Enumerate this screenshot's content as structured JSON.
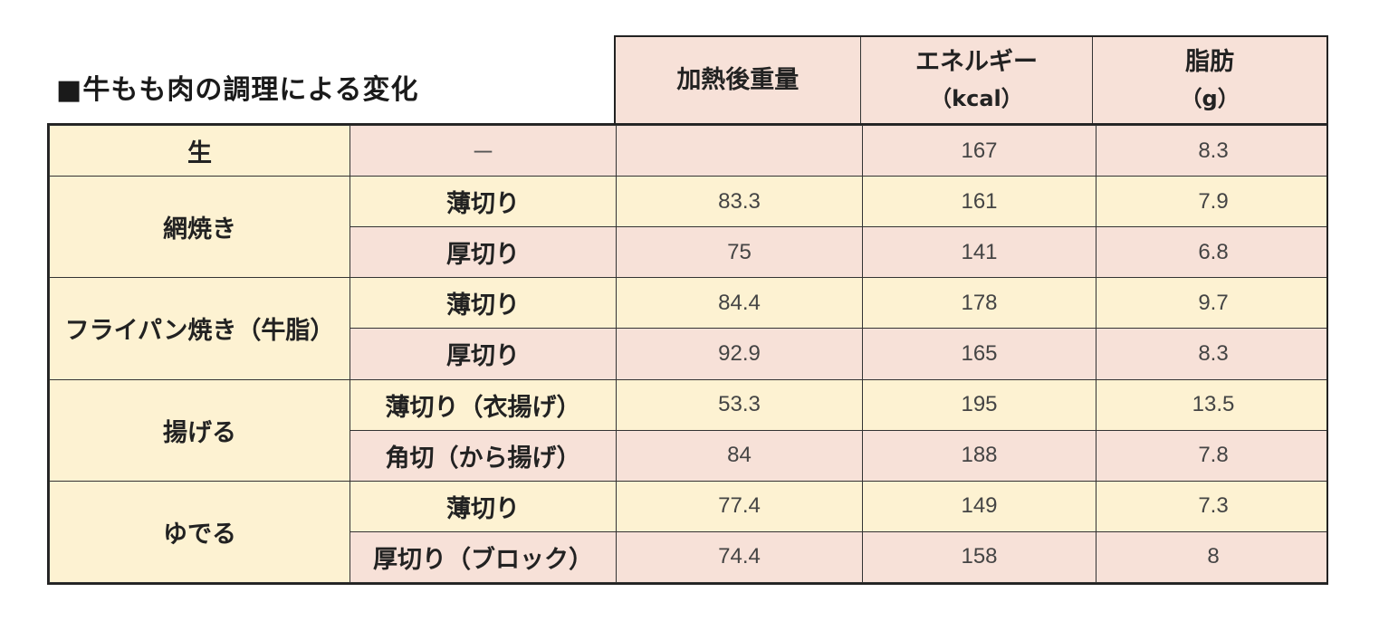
{
  "title": "■牛もも肉の調理による変化",
  "headers": {
    "weight": "加熱後重量",
    "energy_line1": "エネルギー",
    "energy_line2": "（kcal）",
    "fat_line1": "脂肪",
    "fat_line2": "（g）"
  },
  "rows": [
    {
      "method": "生",
      "cut": "－",
      "weight": "",
      "energy": "167",
      "fat": "8.3"
    },
    {
      "method": "網焼き",
      "cut": "薄切り",
      "weight": "83.3",
      "energy": "161",
      "fat": "7.9"
    },
    {
      "method": "",
      "cut": "厚切り",
      "weight": "75",
      "energy": "141",
      "fat": "6.8"
    },
    {
      "method": "フライパン焼き（牛脂）",
      "cut": "薄切り",
      "weight": "84.4",
      "energy": "178",
      "fat": "9.7"
    },
    {
      "method": "",
      "cut": "厚切り",
      "weight": "92.9",
      "energy": "165",
      "fat": "8.3"
    },
    {
      "method": "揚げる",
      "cut": "薄切り（衣揚げ）",
      "weight": "53.3",
      "energy": "195",
      "fat": "13.5"
    },
    {
      "method": "",
      "cut": "角切（から揚げ）",
      "weight": "84",
      "energy": "188",
      "fat": "7.8"
    },
    {
      "method": "ゆでる",
      "cut": "薄切り",
      "weight": "77.4",
      "energy": "149",
      "fat": "7.3"
    },
    {
      "method": "",
      "cut": "厚切り（ブロック）",
      "weight": "74.4",
      "energy": "158",
      "fat": "8"
    }
  ]
}
